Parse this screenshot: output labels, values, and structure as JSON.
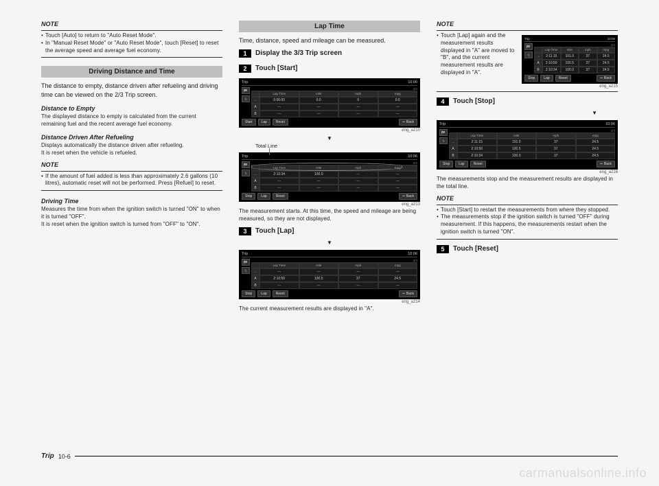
{
  "watermark": "carmanualsonline.info",
  "footer": {
    "label": "Trip",
    "page": "10-6"
  },
  "col1": {
    "note1_hdr": "NOTE",
    "note1_b1": "Touch [Auto] to return to \"Auto Reset Mode\".",
    "note1_b2": "In \"Manual Reset Mode\" or \"Auto Reset Mode\", touch [Reset] to reset the average speed and average fuel economy.",
    "section1": "Driving Distance and Time",
    "section1_body": "The distance to empty, distance driven after refueling and driving time can be viewed on the 2/3 Trip screen.",
    "sub1": "Distance to Empty",
    "sub1_body": "The displayed distance to empty is calculated from the current remaining fuel and the recent average fuel economy.",
    "sub2": "Distance Driven After Refueling",
    "sub2_body1": "Displays automatically the distance driven after refueling.",
    "sub2_body2": "It is reset when the vehicle is refueled.",
    "note2_hdr": "NOTE",
    "note2_b1": "If the amount of fuel added is less than approximately 2.6 gallons (10 litres), automatic reset will not be performed. Press [Refuel] to reset.",
    "sub3": "Driving Time",
    "sub3_body1": "Measures the time from when the ignition switch is turned \"ON\" to when it is turned \"OFF\".",
    "sub3_body2": "It is reset when the ignition switch is turned from \"OFF\" to \"ON\"."
  },
  "col2": {
    "section": "Lap Time",
    "intro": "Time, distance, speed and mileage can be measured.",
    "step1": "Display the 3/3 Trip screen",
    "step2": "Touch [Start]",
    "shot1_id": "eng_a210",
    "totalline": "Total Line",
    "shot2_id": "eng_a213",
    "after2": "The measurement starts. At this time, the speed and mileage are being measured, so they are not displayed.",
    "step3": "Touch [Lap]",
    "shot3_id": "eng_a214",
    "after3": "The current measurement results are displayed in \"A\"."
  },
  "col3": {
    "note1_hdr": "NOTE",
    "note1_body": "Touch [Lap] again and the measurement results displayed in \"A\" are moved to \"B\", and the current measurement results are displayed in \"A\".",
    "shot1_id": "eng_a215",
    "step4": "Touch [Stop]",
    "shot2_id": "eng_a216",
    "after4": "The measurements stop and the measurement results are displayed in the total line.",
    "note2_hdr": "NOTE",
    "note2_b1": "Touch [Start] to restart the measurements from where they stopped.",
    "note2_b2": "The measurements stop if the ignition switch is turned \"OFF\" during measurement. If this happens, the measurements restart when the ignition switch is turned \"ON\".",
    "step5": "Touch [Reset]"
  },
  "trip": {
    "title": "Trip",
    "time": "10:06",
    "page": "3/3",
    "hdrs": [
      "Lap Time",
      "mile",
      "mph",
      "mpg"
    ],
    "row_total": [
      "→",
      "2:11:15",
      "101.0",
      "37",
      "24.5"
    ],
    "row_initial": [
      "→",
      "0:00:00",
      "0.0",
      "0",
      "0.0"
    ],
    "row_a": [
      "A",
      "2:10:50",
      "100.5",
      "37",
      "24.5"
    ],
    "row_a_dash": [
      "A",
      "---",
      "---",
      "---",
      "---"
    ],
    "row_b": [
      "B",
      "2:10:34",
      "100.0",
      "37",
      "24.5"
    ],
    "row_b_dash": [
      "B",
      "---",
      "---",
      "---",
      "---"
    ],
    "row_running": [
      "→",
      "2:10:34",
      "100.0",
      "---",
      "---"
    ],
    "btns_start": [
      "Start",
      "Lap",
      "Reset"
    ],
    "btns_stop": [
      "Stop",
      "Lap",
      "Reset"
    ],
    "back": "↩ Back"
  }
}
